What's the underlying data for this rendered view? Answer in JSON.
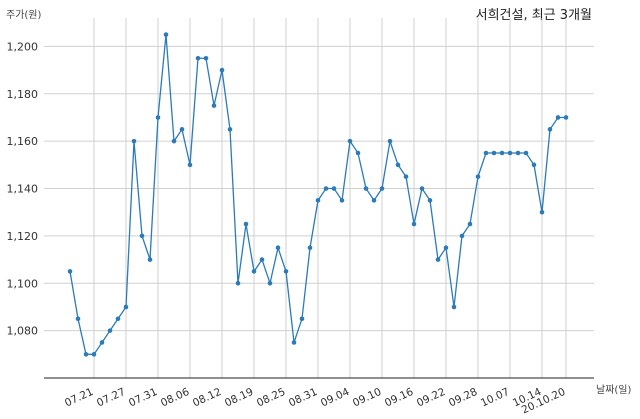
{
  "chart_data": {
    "type": "line",
    "title": "서희건설, 최근 3개월",
    "xlabel": "날짜(일)",
    "ylabel": "주가(원)",
    "ylim": [
      1060,
      1212
    ],
    "yticks": [
      1080,
      1100,
      1120,
      1140,
      1160,
      1180,
      1200
    ],
    "ytick_labels": [
      "1,080",
      "1,100",
      "1,120",
      "1,140",
      "1,160",
      "1,180",
      "1,200"
    ],
    "x_tick_labels": [
      "07.21",
      "07.27",
      "07.31",
      "08.06",
      "08.12",
      "08.19",
      "08.25",
      "08.31",
      "09.04",
      "09.10",
      "09.16",
      "09.22",
      "09.28",
      "10.07",
      "10.14",
      "20.10.20"
    ],
    "x_tick_index": [
      3,
      7,
      11,
      15,
      19,
      23,
      27,
      31,
      35,
      39,
      43,
      47,
      51,
      55,
      59,
      62
    ],
    "grid": true,
    "color": "#2b7bb9",
    "series": [
      {
        "values": [
          1105,
          1085,
          1070,
          1070,
          1075,
          1080,
          1085,
          1090,
          1160,
          1120,
          1110,
          1170,
          1205,
          1160,
          1165,
          1150,
          1195,
          1195,
          1175,
          1190,
          1165,
          1100,
          1125,
          1105,
          1110,
          1100,
          1115,
          1105,
          1075,
          1085,
          1115,
          1135,
          1140,
          1140,
          1135,
          1160,
          1155,
          1140,
          1135,
          1140,
          1160,
          1150,
          1145,
          1125,
          1140,
          1135,
          1110,
          1115,
          1090,
          1120,
          1125,
          1145,
          1155,
          1155,
          1155,
          1155,
          1155,
          1155,
          1150,
          1130,
          1165,
          1170,
          1170
        ]
      }
    ]
  }
}
